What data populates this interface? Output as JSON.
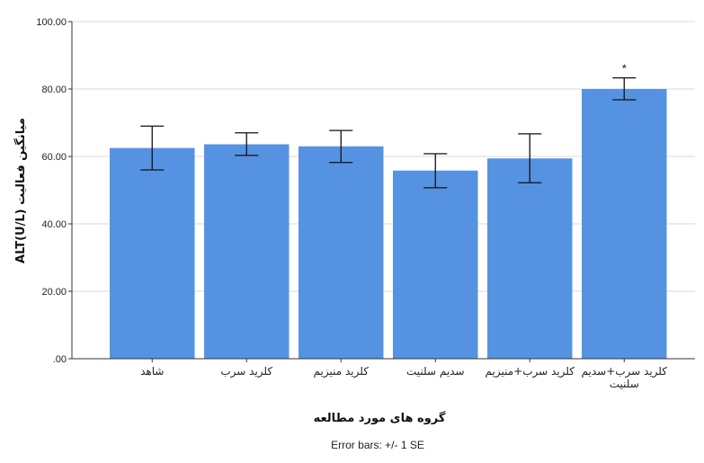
{
  "chart_data": {
    "type": "bar",
    "categories": [
      [
        "شاهد"
      ],
      [
        "کلرید سرب"
      ],
      [
        "کلرید منیزیم"
      ],
      [
        "سدیم سلنیت"
      ],
      [
        "کلرید سرب+منیزیم"
      ],
      [
        "کلرید سرب+سدیم",
        "سلنیت"
      ]
    ],
    "values": [
      62.5,
      63.6,
      63.0,
      55.8,
      59.4,
      80.0
    ],
    "error_bars": {
      "lower": [
        56.0,
        60.3,
        58.2,
        50.7,
        52.2,
        76.8
      ],
      "upper": [
        69.0,
        67.0,
        67.7,
        60.8,
        66.7,
        83.3
      ]
    },
    "significance_marks": [
      "",
      "",
      "",
      "",
      "",
      "*"
    ],
    "ylim": [
      0,
      100
    ],
    "yticks": [
      0,
      20,
      40,
      60,
      80,
      100
    ],
    "ytick_labels": [
      ".00",
      "20.00",
      "40.00",
      "60.00",
      "80.00",
      "100.00"
    ],
    "ylabel": "میانگین فعالیت ALT(U/L)",
    "xlabel": "گروه های مورد مطالعه",
    "footnote": "Error bars: +/- 1 SE",
    "grid": true,
    "colors": {
      "bar": "#5593e2",
      "grid": "#d9d9d9",
      "axis": "#333333",
      "error": "#111111"
    }
  }
}
